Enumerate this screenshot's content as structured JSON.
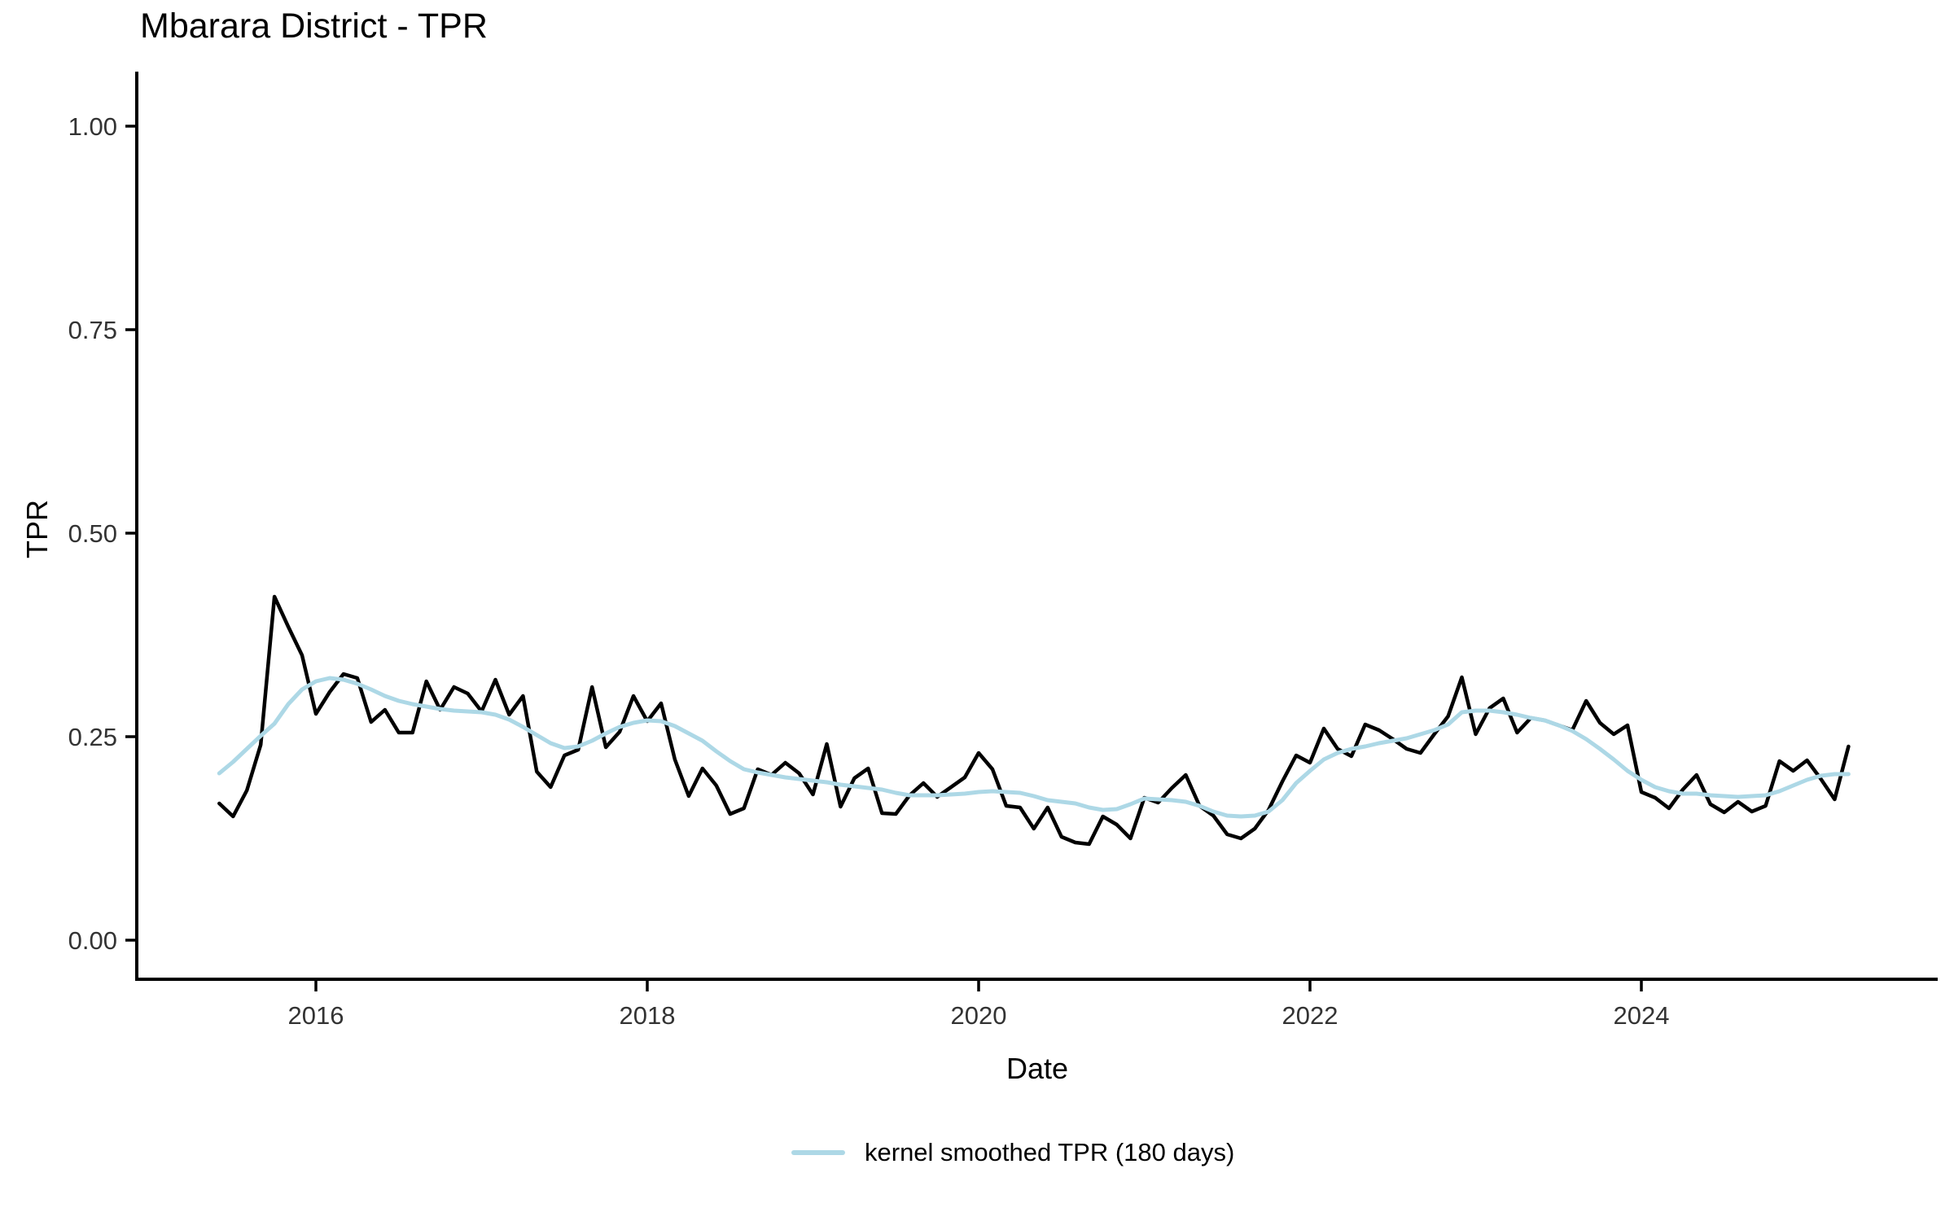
{
  "title": "Mbarara District - TPR",
  "y_axis": {
    "label": "TPR",
    "tick_labels": [
      "1.00",
      "0.75",
      "0.50",
      "0.25",
      "0.00"
    ],
    "tick_values": [
      1.0,
      0.75,
      0.5,
      0.25,
      0.0
    ]
  },
  "x_axis": {
    "label": "Date",
    "tick_labels": [
      "2016",
      "2018",
      "2020",
      "2022",
      "2024"
    ],
    "tick_years": [
      2016,
      2018,
      2020,
      2022,
      2024
    ]
  },
  "legend": {
    "items": [
      {
        "label": "kernel smoothed TPR (180 days)",
        "color": "#ADD8E6"
      }
    ]
  },
  "colors": {
    "tpr_line": "#000000",
    "smoothed_line": "#ADD8E6",
    "axis": "#000000",
    "tick_text": "#333333",
    "background": "#ffffff"
  },
  "chart_data": {
    "type": "line",
    "title": "Mbarara District - TPR",
    "xlabel": "Date",
    "ylabel": "TPR",
    "ylim": [
      0,
      1
    ],
    "y_ticks": [
      0.0,
      0.25,
      0.5,
      0.75,
      1.0
    ],
    "x_tick_years": [
      2016,
      2018,
      2020,
      2022,
      2024
    ],
    "grid": false,
    "legend_position": "bottom",
    "x_unit": "month",
    "start_month": "2015-06",
    "end_month": "2025-04",
    "n_points": 119,
    "series": [
      {
        "name": "TPR",
        "color": "#000000",
        "values": [
          0.168,
          0.152,
          0.184,
          0.24,
          0.422,
          0.385,
          0.35,
          0.278,
          0.305,
          0.327,
          0.322,
          0.268,
          0.283,
          0.255,
          0.255,
          0.318,
          0.283,
          0.311,
          0.303,
          0.281,
          0.32,
          0.277,
          0.3,
          0.207,
          0.188,
          0.227,
          0.234,
          0.311,
          0.237,
          0.256,
          0.3,
          0.269,
          0.291,
          0.222,
          0.177,
          0.211,
          0.19,
          0.155,
          0.162,
          0.21,
          0.203,
          0.218,
          0.205,
          0.179,
          0.241,
          0.164,
          0.199,
          0.211,
          0.156,
          0.155,
          0.178,
          0.193,
          0.176,
          0.188,
          0.2,
          0.23,
          0.21,
          0.165,
          0.163,
          0.137,
          0.163,
          0.127,
          0.12,
          0.118,
          0.152,
          0.142,
          0.125,
          0.175,
          0.169,
          0.187,
          0.203,
          0.165,
          0.153,
          0.13,
          0.125,
          0.137,
          0.16,
          0.195,
          0.227,
          0.218,
          0.26,
          0.235,
          0.226,
          0.265,
          0.258,
          0.247,
          0.235,
          0.23,
          0.253,
          0.275,
          0.323,
          0.253,
          0.285,
          0.297,
          0.255,
          0.273,
          0.27,
          0.264,
          0.258,
          0.294,
          0.267,
          0.253,
          0.264,
          0.182,
          0.175,
          0.162,
          0.185,
          0.203,
          0.167,
          0.157,
          0.17,
          0.158,
          0.165,
          0.22,
          0.208,
          0.221,
          0.198,
          0.173,
          0.238
        ]
      },
      {
        "name": "kernel smoothed TPR (180 days)",
        "color": "#ADD8E6",
        "values": [
          0.205,
          0.219,
          0.235,
          0.251,
          0.266,
          0.29,
          0.308,
          0.318,
          0.322,
          0.32,
          0.315,
          0.308,
          0.3,
          0.294,
          0.29,
          0.287,
          0.284,
          0.282,
          0.281,
          0.28,
          0.277,
          0.271,
          0.262,
          0.252,
          0.242,
          0.236,
          0.238,
          0.245,
          0.254,
          0.262,
          0.267,
          0.27,
          0.269,
          0.263,
          0.254,
          0.245,
          0.232,
          0.22,
          0.21,
          0.206,
          0.203,
          0.2,
          0.198,
          0.196,
          0.194,
          0.191,
          0.189,
          0.187,
          0.185,
          0.181,
          0.178,
          0.178,
          0.178,
          0.179,
          0.18,
          0.182,
          0.183,
          0.182,
          0.181,
          0.177,
          0.172,
          0.17,
          0.168,
          0.163,
          0.16,
          0.161,
          0.167,
          0.174,
          0.173,
          0.172,
          0.17,
          0.165,
          0.158,
          0.153,
          0.152,
          0.153,
          0.158,
          0.172,
          0.193,
          0.208,
          0.222,
          0.23,
          0.235,
          0.238,
          0.242,
          0.245,
          0.248,
          0.253,
          0.258,
          0.265,
          0.28,
          0.282,
          0.282,
          0.28,
          0.277,
          0.273,
          0.27,
          0.264,
          0.257,
          0.247,
          0.235,
          0.222,
          0.208,
          0.197,
          0.188,
          0.183,
          0.18,
          0.18,
          0.178,
          0.177,
          0.176,
          0.177,
          0.178,
          0.183,
          0.19,
          0.197,
          0.202,
          0.204,
          0.204
        ]
      }
    ]
  }
}
